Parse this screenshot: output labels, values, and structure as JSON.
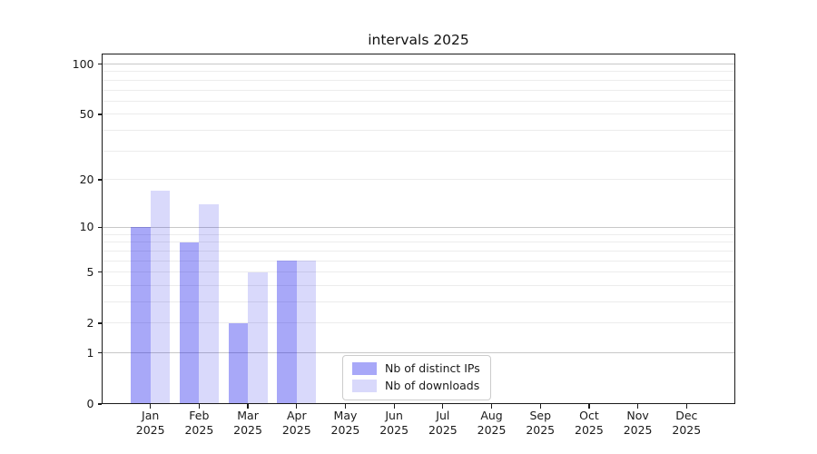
{
  "title": "intervals 2025",
  "chart_data": {
    "type": "bar",
    "title": "intervals 2025",
    "x_months": [
      "Jan",
      "Feb",
      "Mar",
      "Apr",
      "May",
      "Jun",
      "Jul",
      "Aug",
      "Sep",
      "Oct",
      "Nov",
      "Dec"
    ],
    "x_year": "2025",
    "series": [
      {
        "name": "Nb of distinct IPs",
        "values": [
          10,
          8,
          2,
          6,
          0,
          0,
          0,
          0,
          0,
          0,
          0,
          0
        ],
        "fill": "rgba(0,0,235,0.34)",
        "solid": "#a8a8f8"
      },
      {
        "name": "Nb of downloads",
        "values": [
          17,
          14,
          5,
          6,
          0,
          0,
          0,
          0,
          0,
          0,
          0,
          0
        ],
        "fill": "rgba(0,0,228,0.15)",
        "solid": "#d9d9fb"
      }
    ],
    "yscale": "log1p",
    "ylim": [
      0,
      115.4
    ],
    "yticks_labeled": [
      0,
      1,
      2,
      5,
      10,
      20,
      50,
      100
    ],
    "gridlines_major": [
      1,
      10,
      100
    ],
    "gridlines_minor": [
      2,
      3,
      4,
      5,
      6,
      7,
      8,
      9,
      20,
      30,
      40,
      50,
      60,
      70,
      80,
      90
    ],
    "grid": "on",
    "legend_position": "lower-center"
  },
  "colors": {
    "grid_major": "#c8c8c8",
    "grid_minor": "#ececec",
    "spine": "#1a1a1a",
    "legend_border": "#cccccc",
    "text": "#1a1a1a",
    "background": "#ffffff"
  }
}
